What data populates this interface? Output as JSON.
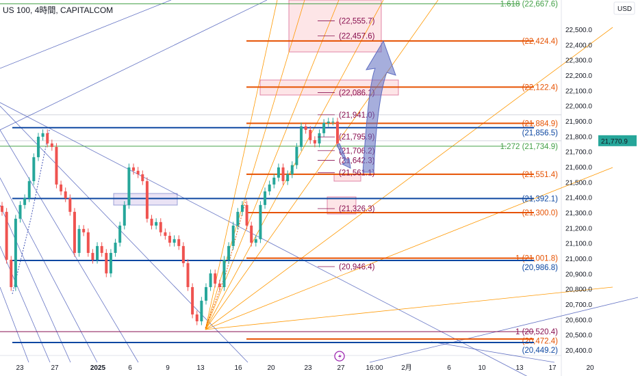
{
  "header": {
    "title": "US 100, 4時間, CAPITALCOM",
    "currency": "USD"
  },
  "colors": {
    "up": "#26a69a",
    "down": "#ef5350",
    "orange": "#e65100",
    "blue": "#0d47a1",
    "green": "#43a047",
    "darkred": "#880e4f",
    "badge": "#26a69a"
  },
  "chart_data": {
    "type": "candlestick",
    "title": "US 100, 4時間, CAPITALCOM",
    "ylim": [
      20350,
      22700
    ],
    "y_ticks": [
      "22,500.0",
      "22,400.0",
      "22,300.0",
      "22,200.0",
      "22,100.0",
      "22,000.0",
      "21,900.0",
      "21,800.0",
      "21,700.0",
      "21,600.0",
      "21,500.0",
      "21,400.0",
      "21,300.0",
      "21,200.0",
      "21,100.0",
      "21,000.0",
      "20,900.0",
      "20,800.0",
      "20,700.0",
      "20,600.0",
      "20,500.0",
      "20,400.0"
    ],
    "x_ticks": [
      {
        "label": "23",
        "bold": false
      },
      {
        "label": "27",
        "bold": false
      },
      {
        "label": "2025",
        "bold": true
      },
      {
        "label": "6",
        "bold": false
      },
      {
        "label": "9",
        "bold": false
      },
      {
        "label": "13",
        "bold": false
      },
      {
        "label": "16",
        "bold": false
      },
      {
        "label": "20",
        "bold": false
      },
      {
        "label": "23",
        "bold": false
      },
      {
        "label": "27",
        "bold": false
      },
      {
        "label": "16:00",
        "bold": false
      },
      {
        "label": "2月",
        "bold": false
      },
      {
        "label": "6",
        "bold": false
      },
      {
        "label": "10",
        "bold": false
      },
      {
        "label": "13",
        "bold": false
      },
      {
        "label": "17",
        "bold": false
      },
      {
        "label": "20",
        "bold": false
      }
    ],
    "closes": [
      21305,
      20991,
      20812,
      21260,
      21350,
      21394,
      21506,
      21663,
      21797,
      21820,
      21753,
      21730,
      21484,
      21439,
      21394,
      21305,
      21036,
      21193,
      21171,
      21036,
      20991,
      21081,
      21036,
      20902,
      21036,
      21103,
      21215,
      21350,
      21596,
      21574,
      21551,
      21506,
      21260,
      21215,
      21238,
      21171,
      21148,
      21103,
      21126,
      21081,
      20969,
      20812,
      20633,
      20588,
      20723,
      20812,
      20902,
      20835,
      20812,
      20991,
      21081,
      21215,
      21305,
      21350,
      21215,
      21103,
      21126,
      21350,
      21439,
      21484,
      21529,
      21596,
      21506,
      21551,
      21611,
      21730,
      21865,
      21842,
      21775,
      21753,
      21820,
      21887,
      21896,
      21896,
      21753
    ],
    "current_price": "21,770.9",
    "levels": [
      {
        "label": "1.618 (22,667.6)",
        "price": 22667.6,
        "color": "green"
      },
      {
        "label": "(22,424.4)",
        "price": 22424.4,
        "color": "orange"
      },
      {
        "label": "(22,122.4)",
        "price": 22122.4,
        "color": "orange"
      },
      {
        "label": "(21,884.9)",
        "price": 21884.9,
        "color": "orange"
      },
      {
        "label": "(21,856.5)",
        "price": 21856.5,
        "color": "blue"
      },
      {
        "label": "1.272 (21,734.9)",
        "price": 21734.9,
        "color": "green"
      },
      {
        "label": "(21,551.4)",
        "price": 21551.4,
        "color": "orange"
      },
      {
        "label": "(21,392.1)",
        "price": 21392.1,
        "color": "blue"
      },
      {
        "label": "(21,300.0)",
        "price": 21300.0,
        "color": "orange"
      },
      {
        "label": "1 (21,001.8)",
        "price": 21001.8,
        "color": "orange"
      },
      {
        "label": "(20,986.8)",
        "price": 20986.8,
        "color": "blue"
      },
      {
        "label": "1 (20,520.4)",
        "price": 20520.4,
        "color": "darkred"
      },
      {
        "label": "(20,472.4)",
        "price": 20472.4,
        "color": "orange"
      },
      {
        "label": "(20,449.2)",
        "price": 20449.2,
        "color": "blue"
      }
    ],
    "projections": [
      "(22,555.7)",
      "(22,457.6)",
      "(22,086.1)",
      "(21,941.0)",
      "(21,795.9)",
      "(21,706.2)",
      "(21,642.3)",
      "(21,561.1)",
      "(21,326.3)",
      "(20,946.4)"
    ],
    "projection_prices": [
      22555.7,
      22457.6,
      22086.1,
      21941.0,
      21795.9,
      21706.2,
      21642.3,
      21561.1,
      21326.3,
      20946.4
    ]
  }
}
